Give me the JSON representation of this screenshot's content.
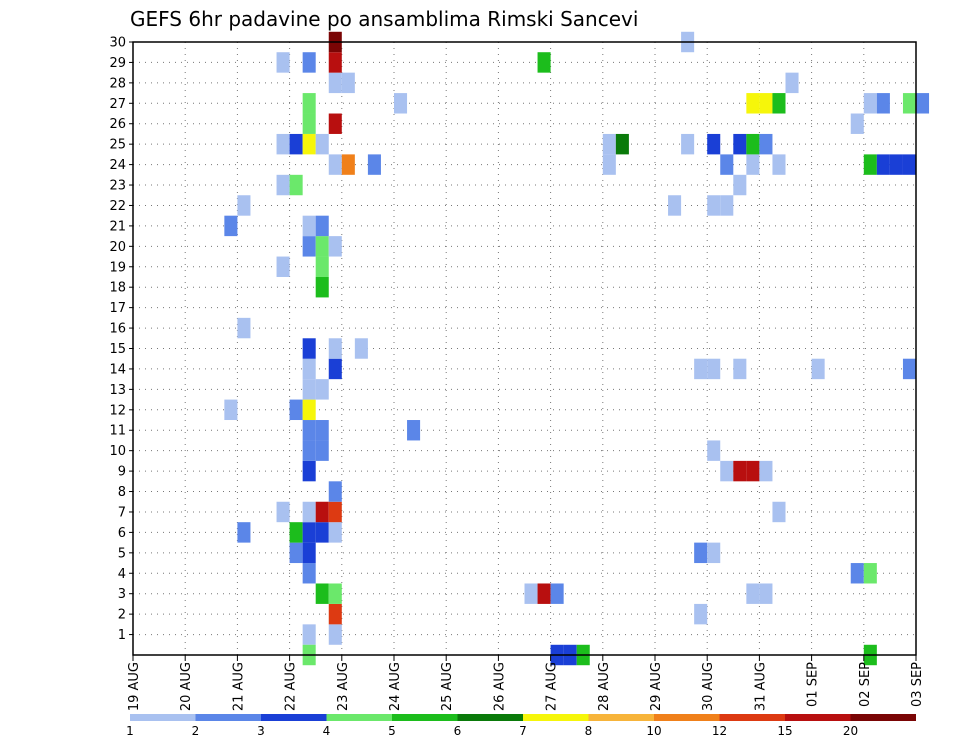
{
  "chart_data": {
    "type": "heatmap",
    "title": "GEFS 6hr padavine po ansamblima Rimski Sancevi",
    "x_tick_labels": [
      "19 AUG",
      "20 AUG",
      "21 AUG",
      "22 AUG",
      "23 AUG",
      "24 AUG",
      "25 AUG",
      "26 AUG",
      "27 AUG",
      "28 AUG",
      "29 AUG",
      "30 AUG",
      "31 AUG",
      "01 SEP",
      "02 SEP",
      "03 SEP"
    ],
    "y_tick_labels": [
      "1",
      "2",
      "3",
      "4",
      "5",
      "6",
      "7",
      "8",
      "9",
      "10",
      "11",
      "12",
      "13",
      "14",
      "15",
      "16",
      "17",
      "18",
      "19",
      "20",
      "21",
      "22",
      "23",
      "24",
      "25",
      "26",
      "27",
      "28",
      "29",
      "30"
    ],
    "ylim": [
      0,
      30
    ],
    "x_range_days": [
      0,
      15
    ],
    "time_step_hours": 6,
    "grid": "dotted",
    "legend_placement": "bottom",
    "legend": {
      "levels": [
        "1",
        "2",
        "3",
        "4",
        "5",
        "6",
        "7",
        "8",
        "10",
        "12",
        "15",
        "20"
      ],
      "colors": [
        "#a9c1f0",
        "#5b86e8",
        "#1a3fd6",
        "#6be86b",
        "#1cbd1c",
        "#0a7a0a",
        "#f6f60a",
        "#f7b43a",
        "#f0801a",
        "#dd3a12",
        "#b80f0f",
        "#7a0505"
      ]
    },
    "cells_format": "[x_start_day_offset, ensemble_member, precipitation_class_index]",
    "cells": [
      [
        3.25,
        1,
        0
      ],
      [
        3.75,
        1,
        0
      ],
      [
        3.25,
        0,
        3
      ],
      [
        8,
        0,
        2
      ],
      [
        8.25,
        0,
        2
      ],
      [
        8.5,
        0,
        4
      ],
      [
        14,
        0,
        4
      ],
      [
        3.75,
        2,
        9
      ],
      [
        10.75,
        2,
        0
      ],
      [
        3.5,
        3,
        4
      ],
      [
        3.75,
        3,
        3
      ],
      [
        7.5,
        3,
        0
      ],
      [
        7.75,
        3,
        10
      ],
      [
        8,
        3,
        1
      ],
      [
        11.75,
        3,
        0
      ],
      [
        12,
        3,
        0
      ],
      [
        3.25,
        4,
        1
      ],
      [
        13.75,
        4,
        1
      ],
      [
        14,
        4,
        3
      ],
      [
        3,
        5,
        1
      ],
      [
        3.25,
        5,
        2
      ],
      [
        10.75,
        5,
        1
      ],
      [
        11,
        5,
        0
      ],
      [
        2,
        6,
        1
      ],
      [
        3,
        6,
        4
      ],
      [
        3.25,
        6,
        2
      ],
      [
        3.5,
        6,
        2
      ],
      [
        3.75,
        6,
        0
      ],
      [
        2.75,
        7,
        0
      ],
      [
        3.25,
        7,
        0
      ],
      [
        3.5,
        7,
        10
      ],
      [
        3.75,
        7,
        9
      ],
      [
        12.25,
        7,
        0
      ],
      [
        3.75,
        8,
        1
      ],
      [
        3.25,
        9,
        2
      ],
      [
        11.25,
        9,
        0
      ],
      [
        11.5,
        9,
        10
      ],
      [
        11.75,
        9,
        10
      ],
      [
        12,
        9,
        0
      ],
      [
        3.25,
        10,
        1
      ],
      [
        3.5,
        10,
        1
      ],
      [
        11,
        10,
        0
      ],
      [
        3.25,
        11,
        1
      ],
      [
        3.5,
        11,
        1
      ],
      [
        5.25,
        11,
        1
      ],
      [
        1.75,
        12,
        0
      ],
      [
        3,
        12,
        1
      ],
      [
        3.25,
        12,
        6
      ],
      [
        3.25,
        13,
        0
      ],
      [
        3.5,
        13,
        0
      ],
      [
        3.25,
        14,
        0
      ],
      [
        3.75,
        14,
        2
      ],
      [
        10.75,
        14,
        0
      ],
      [
        11,
        14,
        0
      ],
      [
        11.5,
        14,
        0
      ],
      [
        13,
        14,
        0
      ],
      [
        14.75,
        14,
        1
      ],
      [
        3.25,
        15,
        2
      ],
      [
        3.75,
        15,
        0
      ],
      [
        4.25,
        15,
        0
      ],
      [
        2,
        16,
        0
      ],
      [
        3.5,
        18,
        4
      ],
      [
        2.75,
        19,
        0
      ],
      [
        3.5,
        19,
        3
      ],
      [
        3.25,
        20,
        1
      ],
      [
        3.5,
        20,
        3
      ],
      [
        3.75,
        20,
        0
      ],
      [
        1.75,
        21,
        1
      ],
      [
        3.25,
        21,
        0
      ],
      [
        3.5,
        21,
        1
      ],
      [
        2,
        22,
        0
      ],
      [
        10.25,
        22,
        0
      ],
      [
        11,
        22,
        0
      ],
      [
        11.25,
        22,
        0
      ],
      [
        2.75,
        23,
        0
      ],
      [
        3,
        23,
        3
      ],
      [
        11.5,
        23,
        0
      ],
      [
        3.75,
        24,
        0
      ],
      [
        4,
        24,
        8
      ],
      [
        4.5,
        24,
        1
      ],
      [
        9,
        24,
        0
      ],
      [
        11.25,
        24,
        1
      ],
      [
        11.75,
        24,
        0
      ],
      [
        12.25,
        24,
        0
      ],
      [
        14,
        24,
        4
      ],
      [
        14.25,
        24,
        2
      ],
      [
        14.5,
        24,
        2
      ],
      [
        14.75,
        24,
        2
      ],
      [
        2.75,
        25,
        0
      ],
      [
        3,
        25,
        2
      ],
      [
        3.25,
        25,
        6
      ],
      [
        3.5,
        25,
        0
      ],
      [
        9,
        25,
        0
      ],
      [
        9.25,
        25,
        5
      ],
      [
        10.5,
        25,
        0
      ],
      [
        11,
        25,
        2
      ],
      [
        11.5,
        25,
        2
      ],
      [
        11.75,
        25,
        4
      ],
      [
        12,
        25,
        1
      ],
      [
        3.25,
        26,
        3
      ],
      [
        3.75,
        26,
        10
      ],
      [
        13.75,
        26,
        0
      ],
      [
        3.25,
        27,
        3
      ],
      [
        5,
        27,
        0
      ],
      [
        11.75,
        27,
        6
      ],
      [
        12,
        27,
        6
      ],
      [
        12.25,
        27,
        4
      ],
      [
        14,
        27,
        0
      ],
      [
        14.25,
        27,
        1
      ],
      [
        14.75,
        27,
        3
      ],
      [
        15,
        27,
        1
      ],
      [
        3.75,
        28,
        0
      ],
      [
        4,
        28,
        0
      ],
      [
        12.5,
        28,
        0
      ],
      [
        2.75,
        29,
        0
      ],
      [
        3.25,
        29,
        1
      ],
      [
        3.75,
        29,
        10
      ],
      [
        7.75,
        29,
        4
      ],
      [
        3.75,
        30,
        11
      ],
      [
        10.5,
        30,
        0
      ]
    ]
  }
}
